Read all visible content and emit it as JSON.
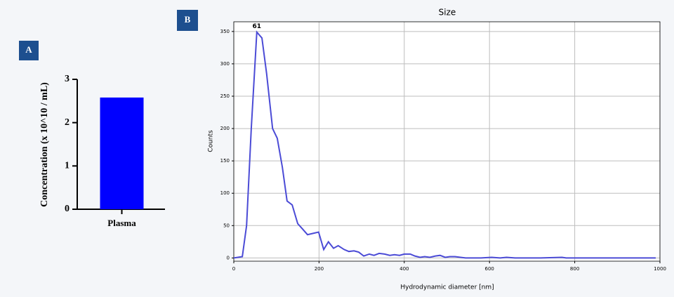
{
  "chart_data": [
    {
      "type": "bar",
      "panel_label": "A",
      "y_label": "Concentration (x 10^10 / mL)",
      "categories": [
        "Plasma"
      ],
      "values": [
        2.58
      ],
      "color": "#0000ff",
      "ylim": [
        0,
        3
      ],
      "yticks": [
        0,
        1,
        2,
        3
      ]
    },
    {
      "type": "line",
      "panel_label": "B",
      "title": "Size",
      "x_label": "Hydrodynamic diameter [nm]",
      "y_label": "Counts",
      "annotation": "61",
      "grid": true,
      "x": [
        0,
        20,
        30,
        41,
        54,
        66,
        77,
        91,
        102,
        114,
        125,
        137,
        150,
        161,
        173,
        186,
        199,
        211,
        222,
        234,
        245,
        259,
        270,
        282,
        293,
        305,
        318,
        329,
        341,
        354,
        366,
        377,
        389,
        400,
        414,
        425,
        437,
        448,
        460,
        473,
        484,
        496,
        507,
        519,
        532,
        544,
        580,
        605,
        625,
        640,
        660,
        720,
        770,
        780,
        850,
        940,
        990
      ],
      "series": [
        {
          "name": "Counts",
          "color": "#4b4bd6",
          "values": [
            0,
            2,
            50,
            200,
            349,
            340,
            285,
            200,
            185,
            140,
            88,
            82,
            53,
            45,
            36,
            38,
            40,
            13,
            25,
            15,
            19,
            13,
            10,
            11,
            9,
            3,
            6,
            4,
            7,
            6,
            4,
            5,
            4,
            6,
            6,
            3,
            1,
            2,
            1,
            3,
            4,
            1,
            2,
            2,
            1,
            0,
            0,
            1,
            0,
            1,
            0,
            0,
            1,
            0,
            0,
            0,
            0
          ]
        }
      ],
      "xlim": [
        0,
        1000
      ],
      "xticks": [
        0,
        200,
        400,
        600,
        800,
        1000
      ],
      "ylim": [
        -5,
        365
      ],
      "yticks": [
        0,
        50,
        100,
        150,
        200,
        250,
        300,
        350
      ]
    }
  ]
}
